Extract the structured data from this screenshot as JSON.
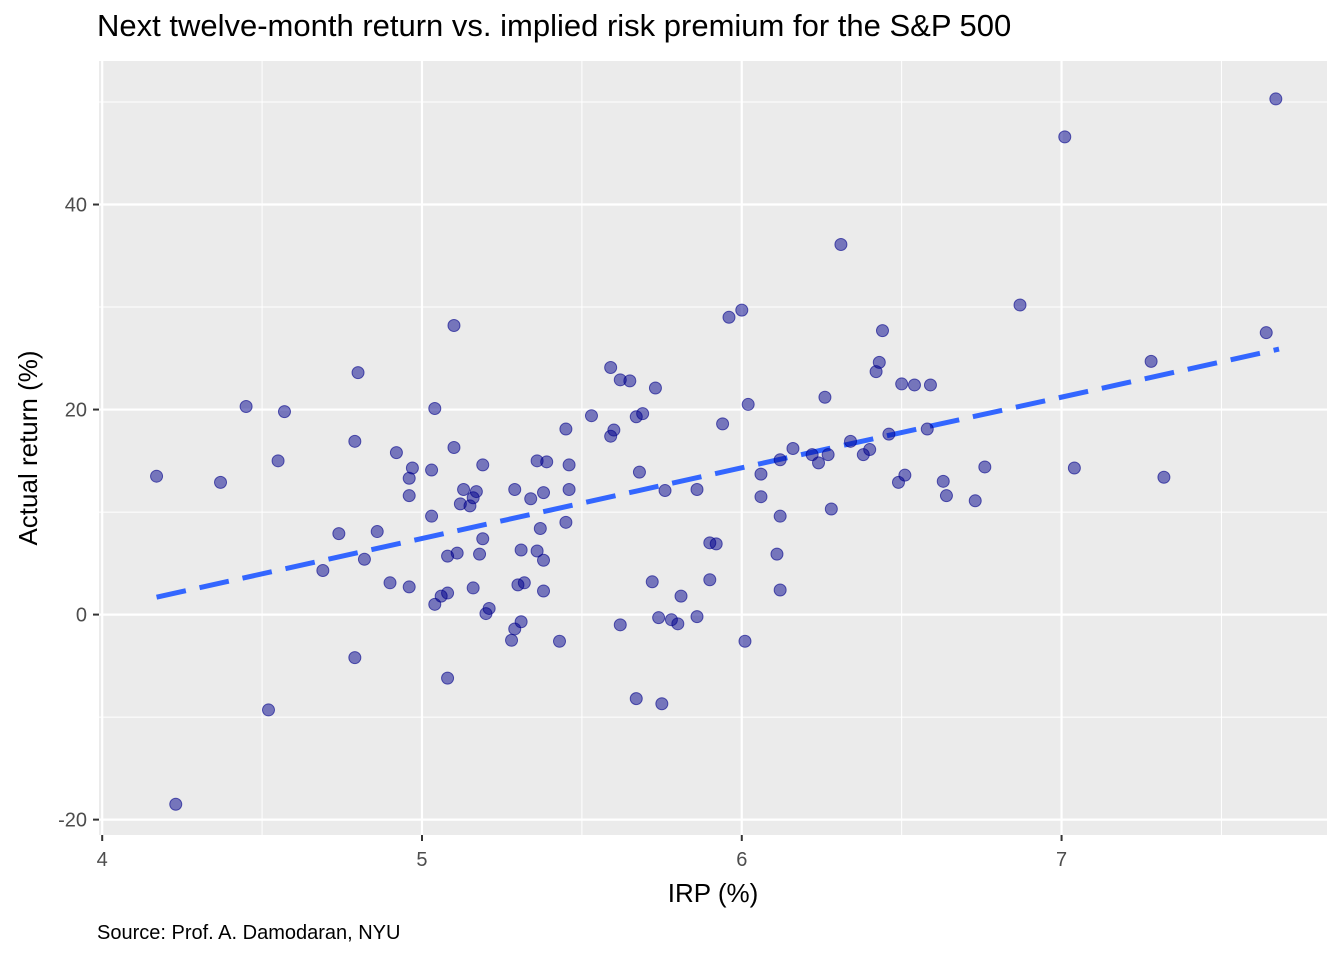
{
  "chart_data": {
    "type": "scatter",
    "title": "Next twelve-month return vs. implied risk premium for the S&P 500",
    "xlabel": "IRP (%)",
    "ylabel": "Actual return (%)",
    "caption": "Source: Prof. A. Damodaran, NYU",
    "xlim": [
      3.99,
      7.83
    ],
    "ylim": [
      -21.5,
      54.0
    ],
    "x_ticks": [
      4,
      5,
      6,
      7
    ],
    "y_ticks": [
      -20,
      0,
      20,
      40
    ],
    "x_tick_labels": [
      "4",
      "5",
      "6",
      "7"
    ],
    "y_tick_labels": [
      "-20",
      "0",
      "20",
      "40"
    ],
    "grid": true,
    "point_color": "#00008B",
    "point_opacity": 0.5,
    "trend_color": "#3366FF",
    "trend_line": {
      "style": "dashed",
      "x": [
        4.17,
        7.68
      ],
      "y": [
        1.7,
        25.9
      ]
    },
    "points": [
      {
        "x": 4.17,
        "y": 13.5
      },
      {
        "x": 4.23,
        "y": -18.5
      },
      {
        "x": 4.37,
        "y": 12.9
      },
      {
        "x": 4.45,
        "y": 20.3
      },
      {
        "x": 4.52,
        "y": -9.3
      },
      {
        "x": 4.55,
        "y": 15.0
      },
      {
        "x": 4.57,
        "y": 19.8
      },
      {
        "x": 4.69,
        "y": 4.3
      },
      {
        "x": 4.74,
        "y": 7.9
      },
      {
        "x": 4.79,
        "y": 16.9
      },
      {
        "x": 4.79,
        "y": -4.2
      },
      {
        "x": 4.8,
        "y": 23.6
      },
      {
        "x": 4.82,
        "y": 5.4
      },
      {
        "x": 4.86,
        "y": 8.1
      },
      {
        "x": 4.9,
        "y": 3.1
      },
      {
        "x": 4.92,
        "y": 15.8
      },
      {
        "x": 4.96,
        "y": 13.3
      },
      {
        "x": 4.96,
        "y": 11.6
      },
      {
        "x": 4.96,
        "y": 2.7
      },
      {
        "x": 4.97,
        "y": 14.3
      },
      {
        "x": 5.03,
        "y": 14.1
      },
      {
        "x": 5.03,
        "y": 9.6
      },
      {
        "x": 5.04,
        "y": 20.1
      },
      {
        "x": 5.04,
        "y": 1.0
      },
      {
        "x": 5.06,
        "y": 1.8
      },
      {
        "x": 5.08,
        "y": 2.1
      },
      {
        "x": 5.08,
        "y": 5.7
      },
      {
        "x": 5.08,
        "y": -6.2
      },
      {
        "x": 5.1,
        "y": 28.2
      },
      {
        "x": 5.1,
        "y": 16.3
      },
      {
        "x": 5.11,
        "y": 6.0
      },
      {
        "x": 5.12,
        "y": 10.8
      },
      {
        "x": 5.13,
        "y": 12.2
      },
      {
        "x": 5.15,
        "y": 10.6
      },
      {
        "x": 5.16,
        "y": 11.4
      },
      {
        "x": 5.16,
        "y": 2.6
      },
      {
        "x": 5.17,
        "y": 12.0
      },
      {
        "x": 5.18,
        "y": 5.9
      },
      {
        "x": 5.19,
        "y": 14.6
      },
      {
        "x": 5.19,
        "y": 7.4
      },
      {
        "x": 5.2,
        "y": 0.1
      },
      {
        "x": 5.21,
        "y": 0.6
      },
      {
        "x": 5.28,
        "y": -2.5
      },
      {
        "x": 5.29,
        "y": -1.4
      },
      {
        "x": 5.29,
        "y": 12.2
      },
      {
        "x": 5.3,
        "y": 2.9
      },
      {
        "x": 5.31,
        "y": -0.7
      },
      {
        "x": 5.31,
        "y": 6.3
      },
      {
        "x": 5.32,
        "y": 3.1
      },
      {
        "x": 5.34,
        "y": 11.3
      },
      {
        "x": 5.36,
        "y": 15.0
      },
      {
        "x": 5.36,
        "y": 6.2
      },
      {
        "x": 5.37,
        "y": 8.4
      },
      {
        "x": 5.38,
        "y": 11.9
      },
      {
        "x": 5.38,
        "y": 5.3
      },
      {
        "x": 5.38,
        "y": 2.3
      },
      {
        "x": 5.39,
        "y": 14.9
      },
      {
        "x": 5.43,
        "y": -2.6
      },
      {
        "x": 5.45,
        "y": 18.1
      },
      {
        "x": 5.45,
        "y": 9.0
      },
      {
        "x": 5.46,
        "y": 14.6
      },
      {
        "x": 5.46,
        "y": 12.2
      },
      {
        "x": 5.53,
        "y": 19.4
      },
      {
        "x": 5.59,
        "y": 24.1
      },
      {
        "x": 5.59,
        "y": 17.4
      },
      {
        "x": 5.6,
        "y": 18.0
      },
      {
        "x": 5.62,
        "y": -1.0
      },
      {
        "x": 5.62,
        "y": 22.9
      },
      {
        "x": 5.65,
        "y": 22.8
      },
      {
        "x": 5.67,
        "y": 19.3
      },
      {
        "x": 5.67,
        "y": -8.2
      },
      {
        "x": 5.68,
        "y": 13.9
      },
      {
        "x": 5.69,
        "y": 19.6
      },
      {
        "x": 5.72,
        "y": 3.2
      },
      {
        "x": 5.73,
        "y": 22.1
      },
      {
        "x": 5.74,
        "y": -0.3
      },
      {
        "x": 5.75,
        "y": -8.7
      },
      {
        "x": 5.76,
        "y": 12.1
      },
      {
        "x": 5.78,
        "y": -0.5
      },
      {
        "x": 5.8,
        "y": -0.9
      },
      {
        "x": 5.81,
        "y": 1.8
      },
      {
        "x": 5.86,
        "y": -0.2
      },
      {
        "x": 5.86,
        "y": 12.2
      },
      {
        "x": 5.9,
        "y": 7.0
      },
      {
        "x": 5.9,
        "y": 3.4
      },
      {
        "x": 5.92,
        "y": 6.9
      },
      {
        "x": 5.94,
        "y": 18.6
      },
      {
        "x": 5.96,
        "y": 29.0
      },
      {
        "x": 6.0,
        "y": 29.7
      },
      {
        "x": 6.01,
        "y": -2.6
      },
      {
        "x": 6.02,
        "y": 20.5
      },
      {
        "x": 6.06,
        "y": 13.7
      },
      {
        "x": 6.06,
        "y": 11.5
      },
      {
        "x": 6.11,
        "y": 5.9
      },
      {
        "x": 6.12,
        "y": 15.1
      },
      {
        "x": 6.12,
        "y": 9.6
      },
      {
        "x": 6.12,
        "y": 2.4
      },
      {
        "x": 6.16,
        "y": 16.2
      },
      {
        "x": 6.22,
        "y": 15.6
      },
      {
        "x": 6.24,
        "y": 14.8
      },
      {
        "x": 6.26,
        "y": 21.2
      },
      {
        "x": 6.27,
        "y": 15.6
      },
      {
        "x": 6.28,
        "y": 10.3
      },
      {
        "x": 6.31,
        "y": 36.1
      },
      {
        "x": 6.34,
        "y": 16.9
      },
      {
        "x": 6.38,
        "y": 15.6
      },
      {
        "x": 6.4,
        "y": 16.1
      },
      {
        "x": 6.42,
        "y": 23.7
      },
      {
        "x": 6.43,
        "y": 24.6
      },
      {
        "x": 6.44,
        "y": 27.7
      },
      {
        "x": 6.46,
        "y": 17.6
      },
      {
        "x": 6.49,
        "y": 12.9
      },
      {
        "x": 6.5,
        "y": 22.5
      },
      {
        "x": 6.51,
        "y": 13.6
      },
      {
        "x": 6.54,
        "y": 22.4
      },
      {
        "x": 6.58,
        "y": 18.1
      },
      {
        "x": 6.59,
        "y": 22.4
      },
      {
        "x": 6.63,
        "y": 13.0
      },
      {
        "x": 6.64,
        "y": 11.6
      },
      {
        "x": 6.73,
        "y": 11.1
      },
      {
        "x": 6.76,
        "y": 14.4
      },
      {
        "x": 6.87,
        "y": 30.2
      },
      {
        "x": 7.01,
        "y": 46.6
      },
      {
        "x": 7.04,
        "y": 14.3
      },
      {
        "x": 7.28,
        "y": 24.7
      },
      {
        "x": 7.32,
        "y": 13.4
      },
      {
        "x": 7.64,
        "y": 27.5
      },
      {
        "x": 7.67,
        "y": 50.3
      }
    ]
  }
}
